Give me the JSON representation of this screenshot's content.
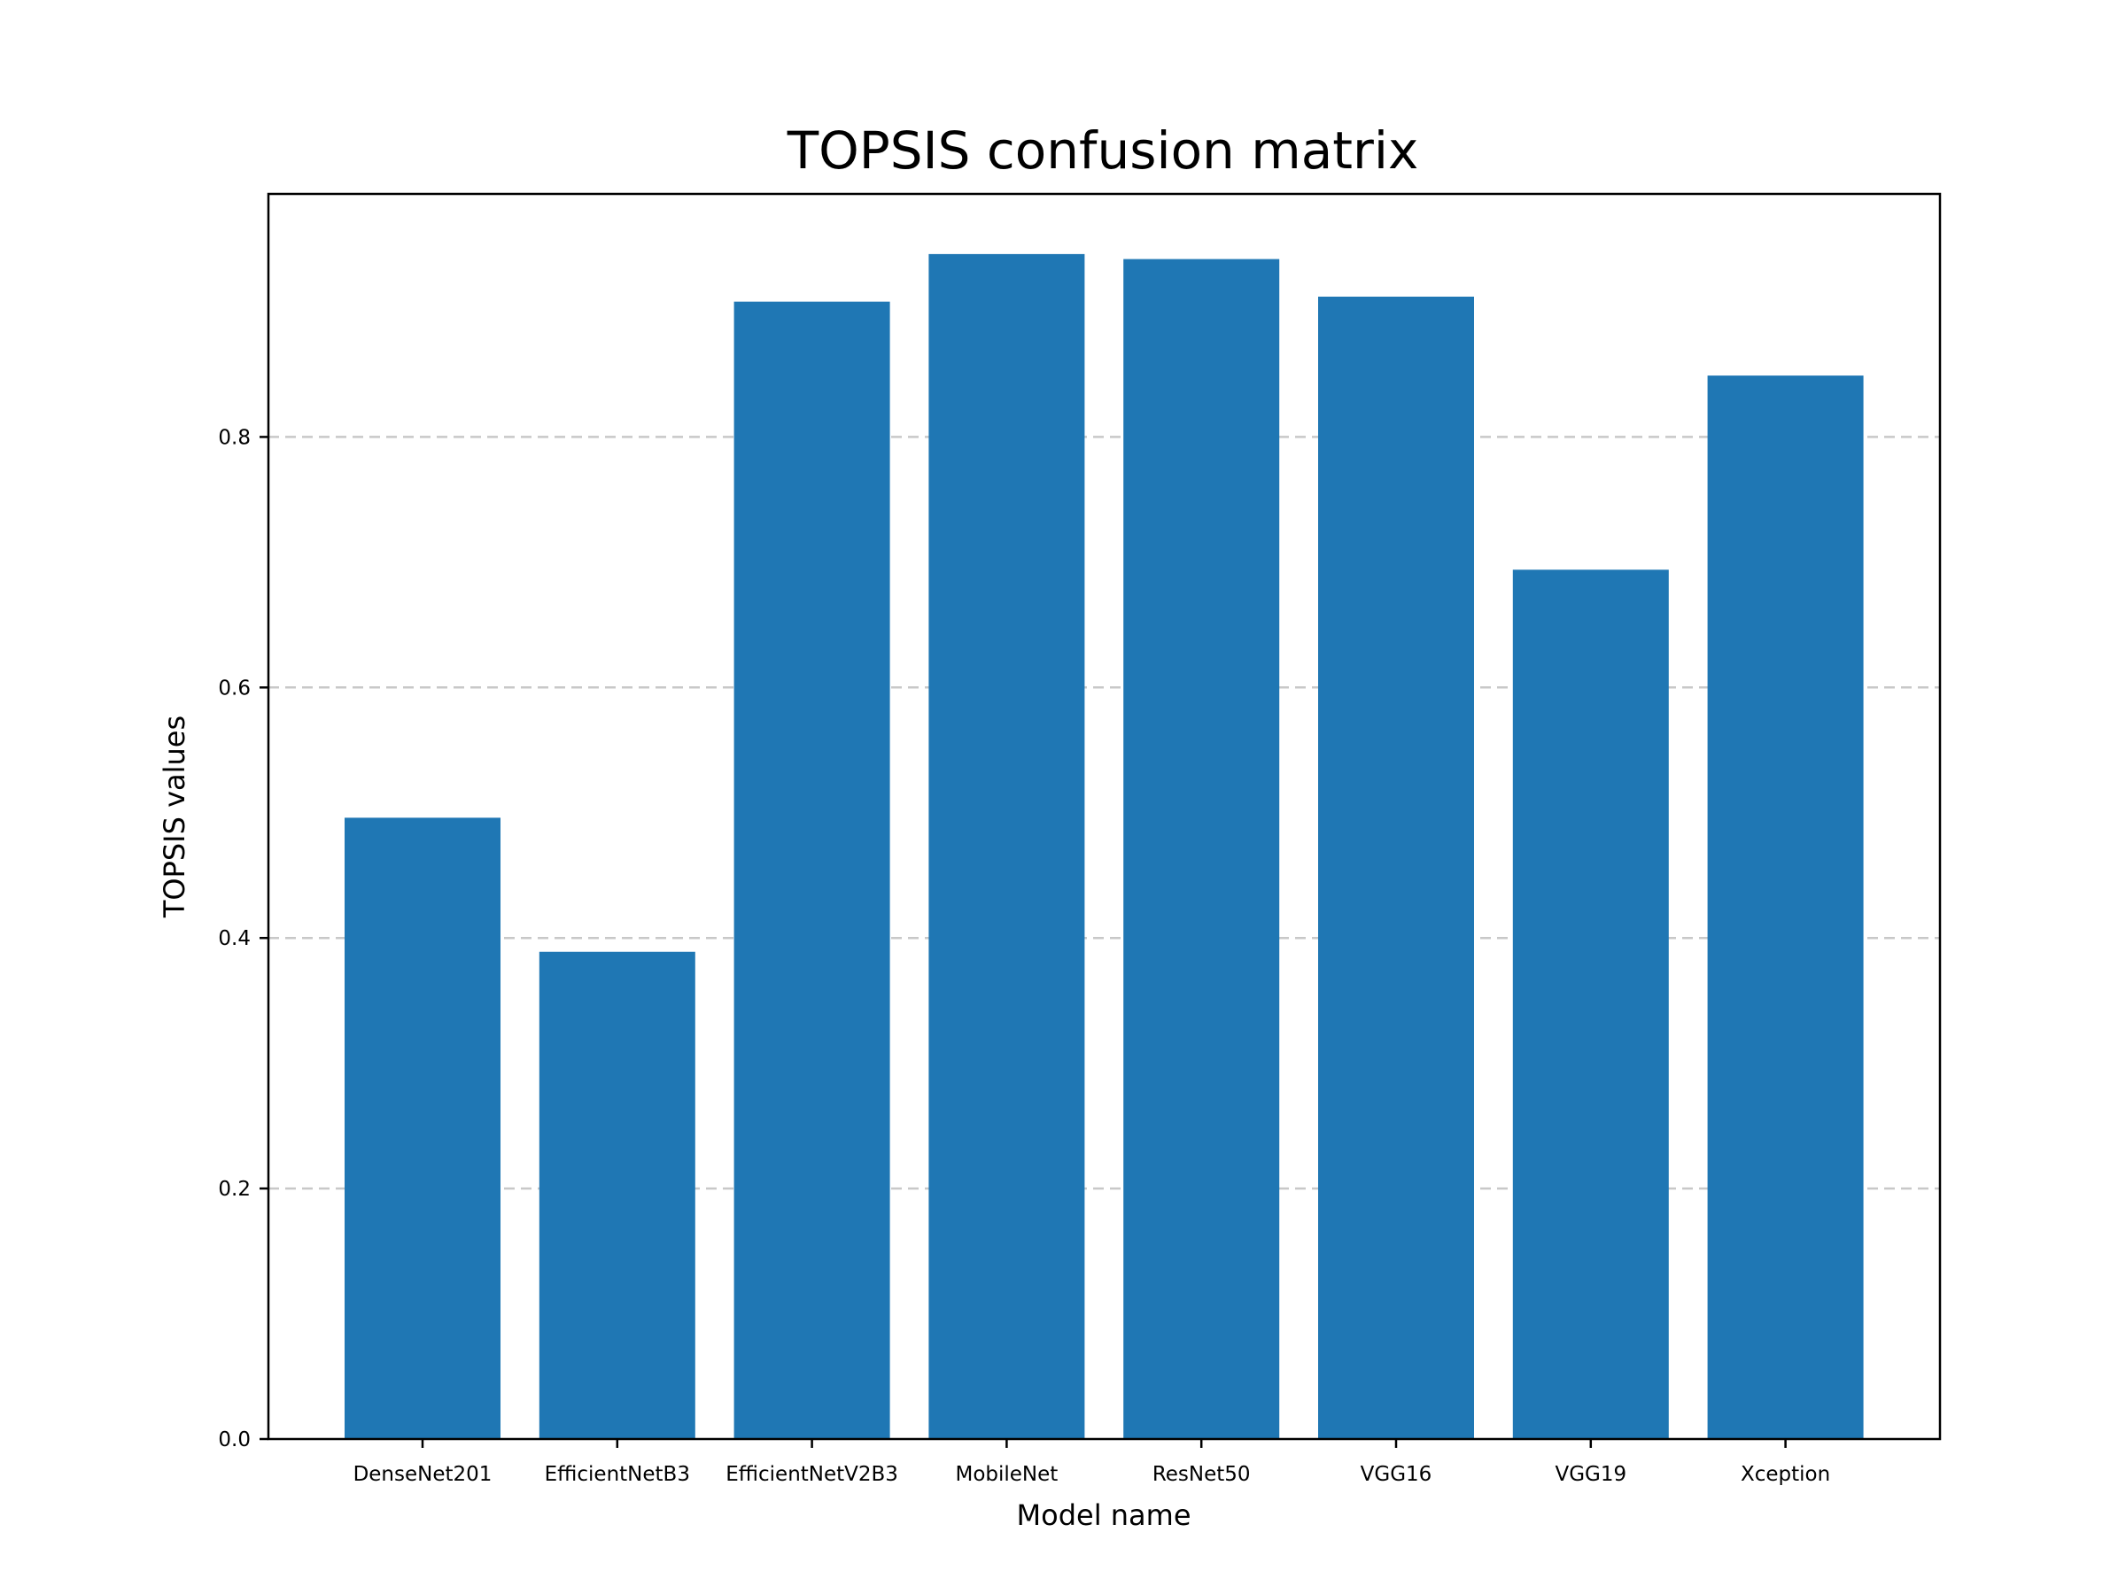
{
  "chart_data": {
    "type": "bar",
    "title": "TOPSIS confusion matrix",
    "xlabel": "Model name",
    "ylabel": "TOPSIS values",
    "categories": [
      "DenseNet201",
      "EfficientNetB3",
      "EfficientNetV2B3",
      "MobileNet",
      "ResNet50",
      "VGG16",
      "VGG19",
      "Xception"
    ],
    "values": [
      0.496,
      0.389,
      0.908,
      0.946,
      0.942,
      0.912,
      0.694,
      0.849
    ],
    "ylim": [
      0,
      0.994
    ],
    "yticks": [
      0.0,
      0.2,
      0.4,
      0.6,
      0.8
    ],
    "ytick_labels": [
      "0.0",
      "0.2",
      "0.4",
      "0.6",
      "0.8"
    ],
    "grid": "y, dashed",
    "bar_color": "#1f77b4",
    "grid_color": "#c8c8c8"
  }
}
